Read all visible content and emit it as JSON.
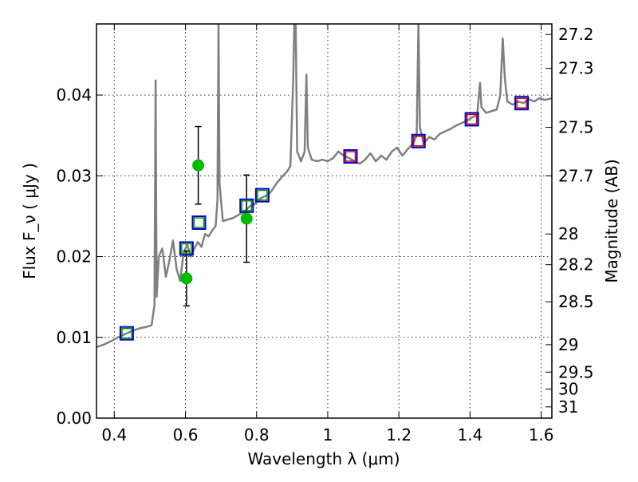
{
  "chart_data": {
    "type": "line",
    "xlabel": "Wavelength  λ (μm)",
    "ylabel": "Flux  F_ν  ( μJy )",
    "ylabel_right": "Magnitude (AB)",
    "xlim": [
      0.35,
      1.63
    ],
    "ylim": [
      0.0,
      0.0488
    ],
    "x_ticks": [
      0.4,
      0.6,
      0.8,
      1.0,
      1.2,
      1.4,
      1.6
    ],
    "x_tick_labels": [
      "0.4",
      "0.6",
      "0.8",
      "1",
      "1.2",
      "1.4",
      "1.6"
    ],
    "y_ticks": [
      0.0,
      0.01,
      0.02,
      0.03,
      0.04
    ],
    "y_tick_labels": [
      "0.00",
      "0.01",
      "0.02",
      "0.03",
      "0.04"
    ],
    "right_ticks": [
      {
        "label": "27.2",
        "flux": 0.0475
      },
      {
        "label": "27.3",
        "flux": 0.0433
      },
      {
        "label": "27.5",
        "flux": 0.036
      },
      {
        "label": "27.7",
        "flux": 0.03
      },
      {
        "label": "28",
        "flux": 0.0228
      },
      {
        "label": "28.2",
        "flux": 0.019
      },
      {
        "label": "28.5",
        "flux": 0.0144
      },
      {
        "label": "29",
        "flux": 0.0091
      },
      {
        "label": "29.5",
        "flux": 0.0057
      },
      {
        "label": "30",
        "flux": 0.0036
      },
      {
        "label": "31",
        "flux": 0.0014
      }
    ],
    "grid": true,
    "series": [
      {
        "kind": "model-spectrum",
        "color": "#808080",
        "points": [
          [
            0.35,
            0.0088
          ],
          [
            0.37,
            0.0091
          ],
          [
            0.39,
            0.0095
          ],
          [
            0.41,
            0.01
          ],
          [
            0.43,
            0.0104
          ],
          [
            0.45,
            0.0108
          ],
          [
            0.47,
            0.0111
          ],
          [
            0.49,
            0.0113
          ],
          [
            0.505,
            0.0115
          ],
          [
            0.513,
            0.014
          ],
          [
            0.516,
            0.0418
          ],
          [
            0.519,
            0.015
          ],
          [
            0.525,
            0.02
          ],
          [
            0.535,
            0.021
          ],
          [
            0.545,
            0.0175
          ],
          [
            0.555,
            0.0195
          ],
          [
            0.565,
            0.022
          ],
          [
            0.575,
            0.0185
          ],
          [
            0.585,
            0.017
          ],
          [
            0.595,
            0.0205
          ],
          [
            0.605,
            0.0215
          ],
          [
            0.615,
            0.02
          ],
          [
            0.625,
            0.021
          ],
          [
            0.635,
            0.0218
          ],
          [
            0.645,
            0.0212
          ],
          [
            0.655,
            0.0228
          ],
          [
            0.665,
            0.0225
          ],
          [
            0.675,
            0.0232
          ],
          [
            0.685,
            0.0238
          ],
          [
            0.69,
            0.027
          ],
          [
            0.693,
            0.0488
          ],
          [
            0.696,
            0.029
          ],
          [
            0.705,
            0.0244
          ],
          [
            0.72,
            0.0246
          ],
          [
            0.735,
            0.0248
          ],
          [
            0.75,
            0.0252
          ],
          [
            0.765,
            0.0255
          ],
          [
            0.78,
            0.0262
          ],
          [
            0.795,
            0.0265
          ],
          [
            0.81,
            0.0272
          ],
          [
            0.825,
            0.0275
          ],
          [
            0.84,
            0.028
          ],
          [
            0.855,
            0.029
          ],
          [
            0.87,
            0.0298
          ],
          [
            0.885,
            0.0305
          ],
          [
            0.895,
            0.0312
          ],
          [
            0.903,
            0.042
          ],
          [
            0.906,
            0.0488
          ],
          [
            0.91,
            0.0488
          ],
          [
            0.914,
            0.033
          ],
          [
            0.925,
            0.0318
          ],
          [
            0.935,
            0.033
          ],
          [
            0.94,
            0.0425
          ],
          [
            0.944,
            0.0335
          ],
          [
            0.955,
            0.032
          ],
          [
            0.97,
            0.0318
          ],
          [
            0.985,
            0.032
          ],
          [
            1.0,
            0.0318
          ],
          [
            1.015,
            0.0322
          ],
          [
            1.03,
            0.033
          ],
          [
            1.045,
            0.0325
          ],
          [
            1.06,
            0.0322
          ],
          [
            1.075,
            0.0318
          ],
          [
            1.09,
            0.0315
          ],
          [
            1.105,
            0.032
          ],
          [
            1.12,
            0.0328
          ],
          [
            1.135,
            0.0318
          ],
          [
            1.15,
            0.0325
          ],
          [
            1.165,
            0.032
          ],
          [
            1.18,
            0.033
          ],
          [
            1.195,
            0.0335
          ],
          [
            1.21,
            0.0325
          ],
          [
            1.225,
            0.0333
          ],
          [
            1.24,
            0.034
          ],
          [
            1.25,
            0.035
          ],
          [
            1.255,
            0.0488
          ],
          [
            1.259,
            0.036
          ],
          [
            1.27,
            0.034
          ],
          [
            1.285,
            0.0348
          ],
          [
            1.3,
            0.0345
          ],
          [
            1.315,
            0.0352
          ],
          [
            1.33,
            0.0355
          ],
          [
            1.345,
            0.0358
          ],
          [
            1.36,
            0.0362
          ],
          [
            1.375,
            0.0365
          ],
          [
            1.39,
            0.0368
          ],
          [
            1.405,
            0.0372
          ],
          [
            1.42,
            0.0375
          ],
          [
            1.428,
            0.0415
          ],
          [
            1.432,
            0.0385
          ],
          [
            1.445,
            0.0378
          ],
          [
            1.46,
            0.038
          ],
          [
            1.475,
            0.0382
          ],
          [
            1.485,
            0.04
          ],
          [
            1.492,
            0.047
          ],
          [
            1.498,
            0.042
          ],
          [
            1.505,
            0.0392
          ],
          [
            1.52,
            0.0388
          ],
          [
            1.535,
            0.0392
          ],
          [
            1.55,
            0.039
          ],
          [
            1.565,
            0.0395
          ],
          [
            1.58,
            0.0392
          ],
          [
            1.595,
            0.0396
          ],
          [
            1.61,
            0.0394
          ],
          [
            1.63,
            0.0396
          ]
        ]
      },
      {
        "kind": "model-photometry",
        "marker": "square",
        "color": "#0000cc",
        "points": [
          [
            0.435,
            0.0105
          ],
          [
            0.603,
            0.021
          ],
          [
            0.638,
            0.0242
          ],
          [
            0.772,
            0.0263
          ],
          [
            0.816,
            0.0276
          ],
          [
            1.064,
            0.0324
          ],
          [
            1.255,
            0.0343
          ],
          [
            1.405,
            0.037
          ],
          [
            1.545,
            0.039
          ]
        ]
      },
      {
        "kind": "model-photometry-inner",
        "marker": "square",
        "colors": [
          "#009900",
          "#009900",
          "#009900",
          "#009900",
          "#009900",
          "#cc0000",
          "#cc0000",
          "#cc0000",
          "#cc0000"
        ],
        "points": [
          [
            0.435,
            0.0105
          ],
          [
            0.603,
            0.021
          ],
          [
            0.638,
            0.0242
          ],
          [
            0.772,
            0.0263
          ],
          [
            0.816,
            0.0276
          ],
          [
            1.064,
            0.0324
          ],
          [
            1.255,
            0.0343
          ],
          [
            1.405,
            0.037
          ],
          [
            1.545,
            0.039
          ]
        ]
      },
      {
        "kind": "observed",
        "marker": "circle",
        "color": "#00bb00",
        "points": [
          {
            "x": 0.603,
            "y": 0.0173,
            "err": 0.0034
          },
          {
            "x": 0.636,
            "y": 0.0313,
            "err": 0.0048
          },
          {
            "x": 0.772,
            "y": 0.0247,
            "err": 0.0054
          }
        ]
      }
    ]
  }
}
